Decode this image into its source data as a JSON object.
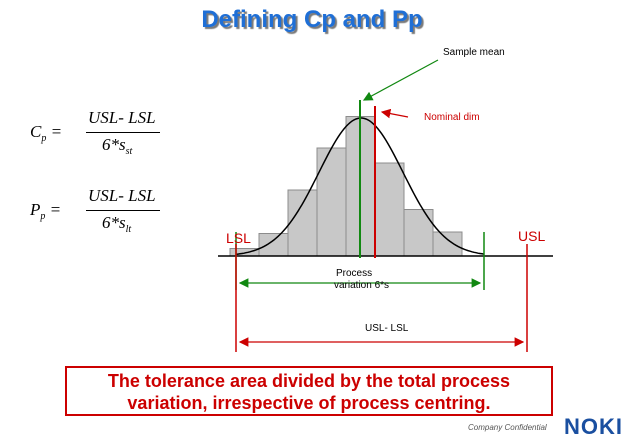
{
  "title": "Defining Cp and Pp",
  "formula_cp": {
    "symbol": "C",
    "symbol_sub": "p",
    "numerator": "USL- LSL",
    "denominator": "6*s",
    "denominator_sub": "st"
  },
  "formula_pp": {
    "symbol": "P",
    "symbol_sub": "p",
    "numerator": "USL- LSL",
    "denominator": "6*s",
    "denominator_sub": "lt"
  },
  "labels": {
    "sample_mean": "Sample mean",
    "nominal_dim": "Nominal dim",
    "lsl": "LSL",
    "usl": "USL",
    "process_variation_line1": "Process",
    "process_variation_line2": "variation 6*s",
    "tolerance": "USL- LSL"
  },
  "histogram_relative_heights": [
    0.05,
    0.15,
    0.44,
    0.72,
    0.93,
    0.62,
    0.31,
    0.16
  ],
  "note": "The tolerance area divided by the total process variation, irrespective of process centring.",
  "footer": {
    "left": "",
    "confidential": "Company Confidential",
    "logo": "NOKI"
  },
  "colors": {
    "title": "#1f6fd6",
    "red": "#cc0000",
    "green": "#118811",
    "bar_fill": "#c8c8c8",
    "bar_stroke": "#8c8c8c"
  }
}
